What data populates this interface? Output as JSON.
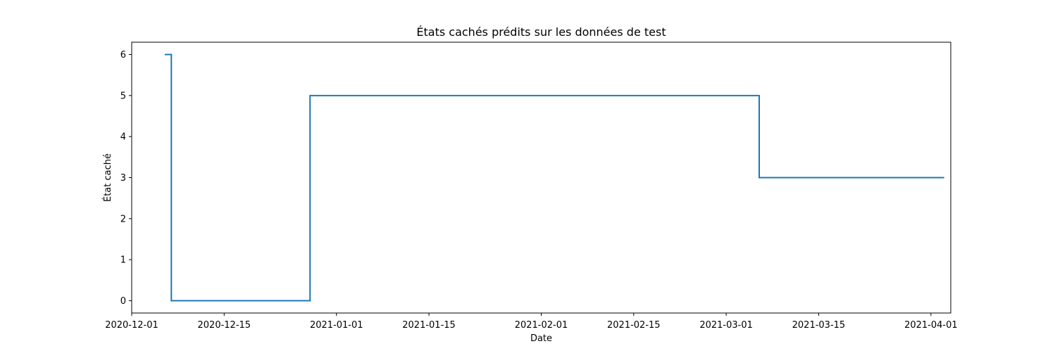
{
  "chart_data": {
    "type": "line",
    "drawstyle": "steps-post",
    "title": "États cachés prédits sur les données de test",
    "xlabel": "Date",
    "ylabel": "État caché",
    "x_type": "date",
    "xlim": [
      "2020-12-01",
      "2021-04-04"
    ],
    "ylim": [
      -0.3,
      6.3
    ],
    "x_ticks": [
      "2020-12-01",
      "2020-12-15",
      "2021-01-01",
      "2021-01-15",
      "2021-02-01",
      "2021-02-15",
      "2021-03-01",
      "2021-03-15",
      "2021-04-01"
    ],
    "y_ticks": [
      0,
      1,
      2,
      3,
      4,
      5,
      6
    ],
    "grid": false,
    "series": [
      {
        "color": "#1f77b4",
        "points": [
          {
            "x": "2020-12-06",
            "y": 6
          },
          {
            "x": "2020-12-07",
            "y": 0
          },
          {
            "x": "2020-12-28",
            "y": 5
          },
          {
            "x": "2021-03-06",
            "y": 3
          },
          {
            "x": "2021-04-03",
            "y": 3
          }
        ]
      }
    ]
  }
}
